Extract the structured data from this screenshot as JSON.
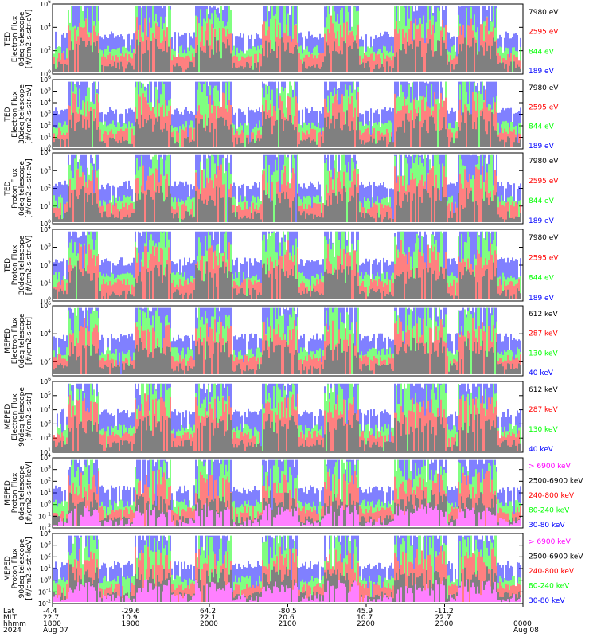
{
  "colors": {
    "blue": "#0000ff",
    "red": "#ff0000",
    "green": "#00ff00",
    "black": "#000000",
    "magenta": "#ff00ff"
  },
  "chart_data": [
    {
      "type": "line",
      "ylabel": [
        "TED",
        "Electron Flux",
        "0deg telescope",
        "[#/cm2-s-str-eV]"
      ],
      "yscale": "log",
      "ylim_exp": [
        0,
        6
      ],
      "ytick_labels": [
        "10^0",
        "10^2",
        "10^4",
        "10^6"
      ],
      "series": [
        {
          "name": "7980 eV",
          "color": "#000000"
        },
        {
          "name": "2595 eV",
          "color": "#ff0000"
        },
        {
          "name": "844 eV",
          "color": "#00ff00"
        },
        {
          "name": "189 eV",
          "color": "#0000ff"
        }
      ]
    },
    {
      "type": "line",
      "ylabel": [
        "TED",
        "Electron Flux",
        "30deg telescope",
        "[#/cm2-s-str-eV]"
      ],
      "yscale": "log",
      "ylim_exp": [
        0,
        6
      ],
      "ytick_labels": [
        "10^0",
        "10^1",
        "10^2",
        "10^3",
        "10^4",
        "10^5",
        "10^6"
      ],
      "series": [
        {
          "name": "7980 eV",
          "color": "#000000"
        },
        {
          "name": "2595 eV",
          "color": "#ff0000"
        },
        {
          "name": "844 eV",
          "color": "#00ff00"
        },
        {
          "name": "189 eV",
          "color": "#0000ff"
        }
      ]
    },
    {
      "type": "line",
      "ylabel": [
        "TED",
        "Proton Flux",
        "0deg telescope",
        "[#/cm2-s-str-eV]"
      ],
      "yscale": "log",
      "ylim_exp": [
        0,
        4
      ],
      "ytick_labels": [
        "10^0",
        "10^1",
        "10^2",
        "10^3",
        "10^4"
      ],
      "series": [
        {
          "name": "7980 eV",
          "color": "#000000"
        },
        {
          "name": "2595 eV",
          "color": "#ff0000"
        },
        {
          "name": "844 eV",
          "color": "#00ff00"
        },
        {
          "name": "189 eV",
          "color": "#0000ff"
        }
      ]
    },
    {
      "type": "line",
      "ylabel": [
        "TED",
        "Proton Flux",
        "30deg telescope",
        "[#/cm2-s-str-eV]"
      ],
      "yscale": "log",
      "ylim_exp": [
        0,
        4
      ],
      "ytick_labels": [
        "10^0",
        "10^1",
        "10^2",
        "10^3",
        "10^4"
      ],
      "series": [
        {
          "name": "7980 eV",
          "color": "#000000"
        },
        {
          "name": "2595 eV",
          "color": "#ff0000"
        },
        {
          "name": "844 eV",
          "color": "#00ff00"
        },
        {
          "name": "189 eV",
          "color": "#0000ff"
        }
      ]
    },
    {
      "type": "line",
      "ylabel": [
        "MEPED",
        "Electron Flux",
        "0deg telescope",
        "[#/cm2-s-str]"
      ],
      "yscale": "log",
      "ylim_exp": [
        1,
        6
      ],
      "ytick_labels": [
        "10^2",
        "10^4",
        "10^6"
      ],
      "series": [
        {
          "name": "612 keV",
          "color": "#000000"
        },
        {
          "name": "287 keV",
          "color": "#ff0000"
        },
        {
          "name": "130 keV",
          "color": "#00ff00"
        },
        {
          "name": "40 keV",
          "color": "#0000ff"
        }
      ]
    },
    {
      "type": "line",
      "ylabel": [
        "MEPED",
        "Electron Flux",
        "90deg telescope",
        "[#/cm2-s-str]"
      ],
      "yscale": "log",
      "ylim_exp": [
        1,
        6
      ],
      "ytick_labels": [
        "10^1",
        "10^2",
        "10^3",
        "10^4",
        "10^5",
        "10^6"
      ],
      "series": [
        {
          "name": "612 keV",
          "color": "#000000"
        },
        {
          "name": "287 keV",
          "color": "#ff0000"
        },
        {
          "name": "130 keV",
          "color": "#00ff00"
        },
        {
          "name": "40 keV",
          "color": "#0000ff"
        }
      ]
    },
    {
      "type": "line",
      "ylabel": [
        "MEPED",
        "Proton Flux",
        "0deg telescope",
        "[#/cm2-s-str-keV]"
      ],
      "yscale": "log",
      "ylim_exp": [
        -2,
        4
      ],
      "ytick_labels": [
        "10^-2",
        "10^-1",
        "10^0",
        "10^1",
        "10^2",
        "10^3",
        "10^4"
      ],
      "series": [
        {
          "name": "> 6900 keV",
          "color": "#ff00ff"
        },
        {
          "name": "2500-6900 keV",
          "color": "#000000"
        },
        {
          "name": "240-800 keV",
          "color": "#ff0000"
        },
        {
          "name": "80-240 keV",
          "color": "#00ff00"
        },
        {
          "name": "30-80 keV",
          "color": "#0000ff"
        }
      ]
    },
    {
      "type": "line",
      "ylabel": [
        "MEPED",
        "Proton Flux",
        "90deg telescope",
        "[#/cm2-s-str-keV]"
      ],
      "yscale": "log",
      "ylim_exp": [
        -2,
        4
      ],
      "ytick_labels": [
        "10^-2",
        "10^-1",
        "10^0",
        "10^1",
        "10^2",
        "10^3",
        "10^4"
      ],
      "series": [
        {
          "name": "> 6900 keV",
          "color": "#ff00ff"
        },
        {
          "name": "2500-6900 keV",
          "color": "#000000"
        },
        {
          "name": "240-800 keV",
          "color": "#ff0000"
        },
        {
          "name": "80-240 keV",
          "color": "#00ff00"
        },
        {
          "name": "30-80 keV",
          "color": "#0000ff"
        }
      ]
    }
  ],
  "x_axis": {
    "row_labels": [
      "Lat",
      "MLT",
      "hhmm",
      "2024"
    ],
    "columns": [
      {
        "lat": "-4.4",
        "mlt": "22.7",
        "hhmm": "1800",
        "date": "Aug 07"
      },
      {
        "lat": "-29.6",
        "mlt": "10.9",
        "hhmm": "1900",
        "date": ""
      },
      {
        "lat": "64.2",
        "mlt": "22.1",
        "hhmm": "2000",
        "date": ""
      },
      {
        "lat": "-80.5",
        "mlt": "20.6",
        "hhmm": "2100",
        "date": ""
      },
      {
        "lat": "45.9",
        "mlt": "10.7",
        "hhmm": "2200",
        "date": ""
      },
      {
        "lat": "-11.2",
        "mlt": "22.7",
        "hhmm": "2300",
        "date": ""
      },
      {
        "lat": "",
        "mlt": "",
        "hhmm": "0000",
        "date": "Aug 08"
      }
    ]
  }
}
